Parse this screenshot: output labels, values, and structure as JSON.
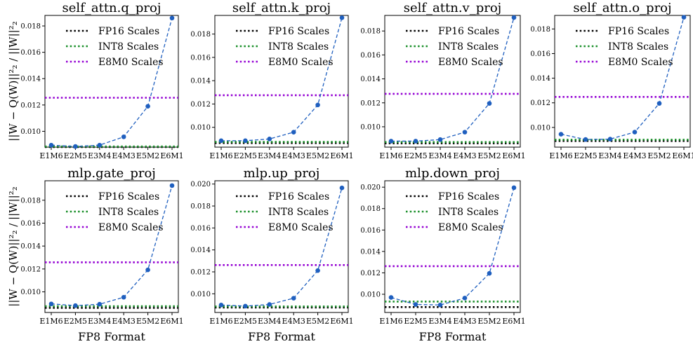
{
  "chart_data": [
    {
      "type": "line",
      "title": "self_attn.q_proj",
      "categories": [
        "E1M6",
        "E2M5",
        "E3M4",
        "E4M3",
        "E5M2",
        "E6M1"
      ],
      "ylim": [
        0.0088,
        0.0188
      ],
      "yticks": [
        0.01,
        0.012,
        0.014,
        0.016,
        0.018
      ],
      "xlabel": "",
      "ylabel": "||W − Q(W)||²₂ / ||W||²₂",
      "series": [
        {
          "name": "",
          "values": [
            0.00895,
            0.00885,
            0.00895,
            0.00958,
            0.0119,
            0.0186
          ]
        }
      ],
      "hlines": [
        {
          "name": "FP16 Scales",
          "value": 0.0088,
          "color": "#000000"
        },
        {
          "name": "INT8 Scales",
          "value": 0.00885,
          "color": "#1a8f2a"
        },
        {
          "name": "E8M0 Scales",
          "value": 0.01255,
          "color": "#9400d3"
        }
      ]
    },
    {
      "type": "line",
      "title": "self_attn.k_proj",
      "categories": [
        "E1M6",
        "E2M5",
        "E3M4",
        "E4M3",
        "E5M2",
        "E6M1"
      ],
      "ylim": [
        0.0083,
        0.0196
      ],
      "yticks": [
        0.01,
        0.012,
        0.014,
        0.016,
        0.018
      ],
      "xlabel": "",
      "ylabel": "",
      "series": [
        {
          "name": "",
          "values": [
            0.00885,
            0.00885,
            0.009,
            0.00958,
            0.01192,
            0.0194
          ]
        }
      ],
      "hlines": [
        {
          "name": "FP16 Scales",
          "value": 0.00865,
          "color": "#000000"
        },
        {
          "name": "INT8 Scales",
          "value": 0.00875,
          "color": "#1a8f2a"
        },
        {
          "name": "E8M0 Scales",
          "value": 0.01275,
          "color": "#9400d3"
        }
      ]
    },
    {
      "type": "line",
      "title": "self_attn.v_proj",
      "categories": [
        "E1M6",
        "E2M5",
        "E3M4",
        "E4M3",
        "E5M2",
        "E6M1"
      ],
      "ylim": [
        0.0083,
        0.0193
      ],
      "yticks": [
        0.01,
        0.012,
        0.014,
        0.016,
        0.018
      ],
      "xlabel": "",
      "ylabel": "",
      "series": [
        {
          "name": "",
          "values": [
            0.0088,
            0.0088,
            0.00893,
            0.00955,
            0.01195,
            0.01912
          ]
        }
      ],
      "hlines": [
        {
          "name": "FP16 Scales",
          "value": 0.00862,
          "color": "#000000"
        },
        {
          "name": "INT8 Scales",
          "value": 0.00872,
          "color": "#1a8f2a"
        },
        {
          "name": "E8M0 Scales",
          "value": 0.01275,
          "color": "#9400d3"
        }
      ]
    },
    {
      "type": "line",
      "title": "self_attn.o_proj",
      "categories": [
        "E1M6",
        "E2M5",
        "E3M4",
        "E4M3",
        "E5M2",
        "E6M1"
      ],
      "ylim": [
        0.0084,
        0.0191
      ],
      "yticks": [
        0.01,
        0.012,
        0.014,
        0.016,
        0.018
      ],
      "xlabel": "",
      "ylabel": "",
      "series": [
        {
          "name": "",
          "values": [
            0.00945,
            0.00902,
            0.00905,
            0.00962,
            0.01195,
            0.01895
          ]
        }
      ],
      "hlines": [
        {
          "name": "FP16 Scales",
          "value": 0.0089,
          "color": "#000000"
        },
        {
          "name": "INT8 Scales",
          "value": 0.009,
          "color": "#1a8f2a"
        },
        {
          "name": "E8M0 Scales",
          "value": 0.01248,
          "color": "#9400d3"
        }
      ]
    },
    {
      "type": "line",
      "title": "mlp.gate_proj",
      "categories": [
        "E1M6",
        "E2M5",
        "E3M4",
        "E4M3",
        "E5M2",
        "E6M1"
      ],
      "ylim": [
        0.0082,
        0.0197
      ],
      "yticks": [
        0.01,
        0.012,
        0.014,
        0.016,
        0.018
      ],
      "xlabel": "FP8 Format",
      "ylabel": "||W − Q(W)||²₂ / ||W||²₂",
      "series": [
        {
          "name": "",
          "values": [
            0.00895,
            0.0088,
            0.00892,
            0.00953,
            0.01192,
            0.01928
          ]
        }
      ],
      "hlines": [
        {
          "name": "FP16 Scales",
          "value": 0.0086,
          "color": "#000000"
        },
        {
          "name": "INT8 Scales",
          "value": 0.00875,
          "color": "#1a8f2a"
        },
        {
          "name": "E8M0 Scales",
          "value": 0.01258,
          "color": "#9400d3"
        }
      ]
    },
    {
      "type": "line",
      "title": "mlp.up_proj",
      "categories": [
        "E1M6",
        "E2M5",
        "E3M4",
        "E4M3",
        "E5M2",
        "E6M1"
      ],
      "ylim": [
        0.0083,
        0.0203
      ],
      "yticks": [
        0.01,
        0.012,
        0.014,
        0.016,
        0.018,
        0.02
      ],
      "xlabel": "FP8 Format",
      "ylabel": "",
      "series": [
        {
          "name": "",
          "values": [
            0.00898,
            0.00888,
            0.00903,
            0.0096,
            0.01212,
            0.01965
          ]
        }
      ],
      "hlines": [
        {
          "name": "FP16 Scales",
          "value": 0.00875,
          "color": "#000000"
        },
        {
          "name": "INT8 Scales",
          "value": 0.00885,
          "color": "#1a8f2a"
        },
        {
          "name": "E8M0 Scales",
          "value": 0.01262,
          "color": "#9400d3"
        }
      ]
    },
    {
      "type": "line",
      "title": "mlp.down_proj",
      "categories": [
        "E1M6",
        "E2M5",
        "E3M4",
        "E4M3",
        "E5M2",
        "E6M1"
      ],
      "ylim": [
        0.0083,
        0.0206
      ],
      "yticks": [
        0.01,
        0.012,
        0.014,
        0.016,
        0.018,
        0.02
      ],
      "xlabel": "FP8 Format",
      "ylabel": "",
      "series": [
        {
          "name": "",
          "values": [
            0.0097,
            0.00905,
            0.009,
            0.00965,
            0.01195,
            0.01995
          ]
        }
      ],
      "hlines": [
        {
          "name": "FP16 Scales",
          "value": 0.0088,
          "color": "#000000"
        },
        {
          "name": "INT8 Scales",
          "value": 0.00932,
          "color": "#1a8f2a"
        },
        {
          "name": "E8M0 Scales",
          "value": 0.01262,
          "color": "#9400d3"
        }
      ]
    }
  ],
  "legend": [
    "FP16 Scales",
    "INT8 Scales",
    "E8M0 Scales"
  ],
  "colors": {
    "series": "#1f5fbf",
    "fp16": "#000000",
    "int8": "#1a8f2a",
    "e8m0": "#9400d3"
  }
}
